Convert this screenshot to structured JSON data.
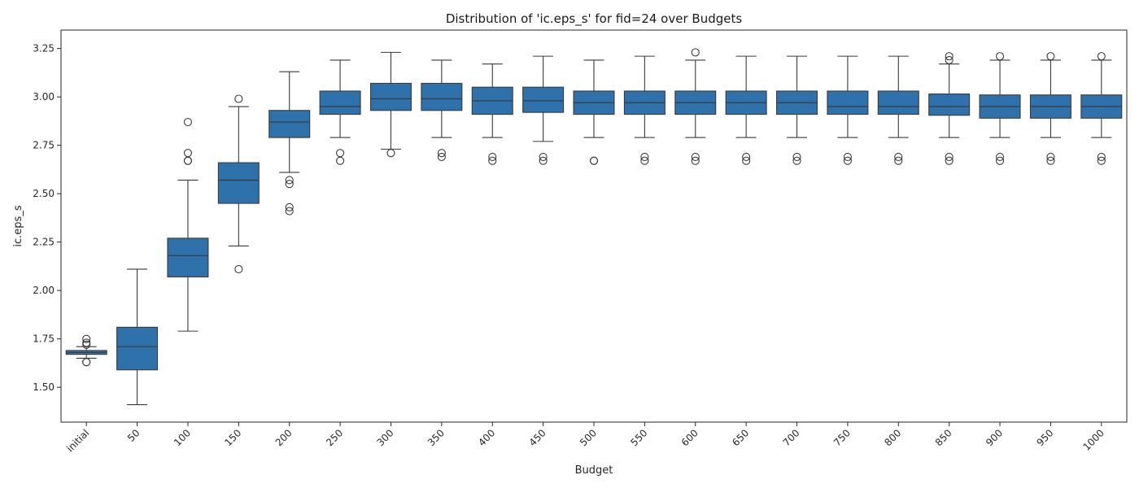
{
  "chart_data": {
    "type": "box",
    "title": "Distribution of 'ic.eps_s' for fid=24 over Budgets",
    "xlabel": "Budget",
    "ylabel": "ic.eps_s",
    "ylim": [
      1.32,
      3.345
    ],
    "yticks": [
      "1.50",
      "1.75",
      "2.00",
      "2.25",
      "2.50",
      "2.75",
      "3.00",
      "3.25"
    ],
    "ytick_values": [
      1.5,
      1.75,
      2.0,
      2.25,
      2.5,
      2.75,
      3.0,
      3.25
    ],
    "grid": false,
    "box_color": "#2f72ab",
    "edge_color": "#3a3a3a",
    "categories": [
      "initial",
      "50",
      "100",
      "150",
      "200",
      "250",
      "300",
      "350",
      "400",
      "450",
      "500",
      "550",
      "600",
      "650",
      "700",
      "750",
      "800",
      "850",
      "900",
      "950",
      "1000"
    ],
    "boxes": [
      {
        "whisker_low": 1.65,
        "q1": 1.67,
        "median": 1.68,
        "q3": 1.69,
        "whisker_high": 1.71,
        "outliers": [
          1.63,
          1.63,
          1.72,
          1.73,
          1.75
        ]
      },
      {
        "whisker_low": 1.41,
        "q1": 1.59,
        "median": 1.71,
        "q3": 1.81,
        "whisker_high": 2.11,
        "outliers": []
      },
      {
        "whisker_low": 1.79,
        "q1": 2.07,
        "median": 2.18,
        "q3": 2.27,
        "whisker_high": 2.57,
        "outliers": [
          2.67,
          2.67,
          2.71,
          2.87
        ]
      },
      {
        "whisker_low": 2.23,
        "q1": 2.45,
        "median": 2.57,
        "q3": 2.66,
        "whisker_high": 2.95,
        "outliers": [
          2.11,
          2.99
        ]
      },
      {
        "whisker_low": 2.61,
        "q1": 2.79,
        "median": 2.87,
        "q3": 2.93,
        "whisker_high": 3.13,
        "outliers": [
          2.41,
          2.43,
          2.55,
          2.57
        ]
      },
      {
        "whisker_low": 2.79,
        "q1": 2.91,
        "median": 2.95,
        "q3": 3.03,
        "whisker_high": 3.19,
        "outliers": [
          2.67,
          2.71
        ]
      },
      {
        "whisker_low": 2.73,
        "q1": 2.93,
        "median": 2.99,
        "q3": 3.07,
        "whisker_high": 3.23,
        "outliers": [
          2.71
        ]
      },
      {
        "whisker_low": 2.79,
        "q1": 2.93,
        "median": 2.99,
        "q3": 3.07,
        "whisker_high": 3.19,
        "outliers": [
          2.69,
          2.71
        ]
      },
      {
        "whisker_low": 2.79,
        "q1": 2.91,
        "median": 2.98,
        "q3": 3.05,
        "whisker_high": 3.17,
        "outliers": [
          2.67,
          2.69
        ]
      },
      {
        "whisker_low": 2.77,
        "q1": 2.92,
        "median": 2.98,
        "q3": 3.05,
        "whisker_high": 3.21,
        "outliers": [
          2.67,
          2.69
        ]
      },
      {
        "whisker_low": 2.79,
        "q1": 2.91,
        "median": 2.97,
        "q3": 3.03,
        "whisker_high": 3.19,
        "outliers": [
          2.67,
          2.67
        ]
      },
      {
        "whisker_low": 2.79,
        "q1": 2.91,
        "median": 2.97,
        "q3": 3.03,
        "whisker_high": 3.21,
        "outliers": [
          2.67,
          2.69
        ]
      },
      {
        "whisker_low": 2.79,
        "q1": 2.91,
        "median": 2.97,
        "q3": 3.03,
        "whisker_high": 3.19,
        "outliers": [
          2.67,
          2.69,
          3.23
        ]
      },
      {
        "whisker_low": 2.79,
        "q1": 2.91,
        "median": 2.97,
        "q3": 3.03,
        "whisker_high": 3.21,
        "outliers": [
          2.67,
          2.69
        ]
      },
      {
        "whisker_low": 2.79,
        "q1": 2.91,
        "median": 2.97,
        "q3": 3.03,
        "whisker_high": 3.21,
        "outliers": [
          2.67,
          2.69
        ]
      },
      {
        "whisker_low": 2.79,
        "q1": 2.91,
        "median": 2.95,
        "q3": 3.03,
        "whisker_high": 3.21,
        "outliers": [
          2.67,
          2.69
        ]
      },
      {
        "whisker_low": 2.79,
        "q1": 2.91,
        "median": 2.95,
        "q3": 3.03,
        "whisker_high": 3.21,
        "outliers": [
          2.67,
          2.69
        ]
      },
      {
        "whisker_low": 2.79,
        "q1": 2.905,
        "median": 2.95,
        "q3": 3.015,
        "whisker_high": 3.17,
        "outliers": [
          2.67,
          2.69,
          3.19,
          3.21
        ]
      },
      {
        "whisker_low": 2.79,
        "q1": 2.89,
        "median": 2.95,
        "q3": 3.01,
        "whisker_high": 3.19,
        "outliers": [
          2.67,
          2.69,
          3.21
        ]
      },
      {
        "whisker_low": 2.79,
        "q1": 2.89,
        "median": 2.95,
        "q3": 3.01,
        "whisker_high": 3.19,
        "outliers": [
          2.67,
          2.69,
          3.21
        ]
      },
      {
        "whisker_low": 2.79,
        "q1": 2.89,
        "median": 2.95,
        "q3": 3.01,
        "whisker_high": 3.19,
        "outliers": [
          2.67,
          2.69,
          3.21
        ]
      }
    ]
  }
}
